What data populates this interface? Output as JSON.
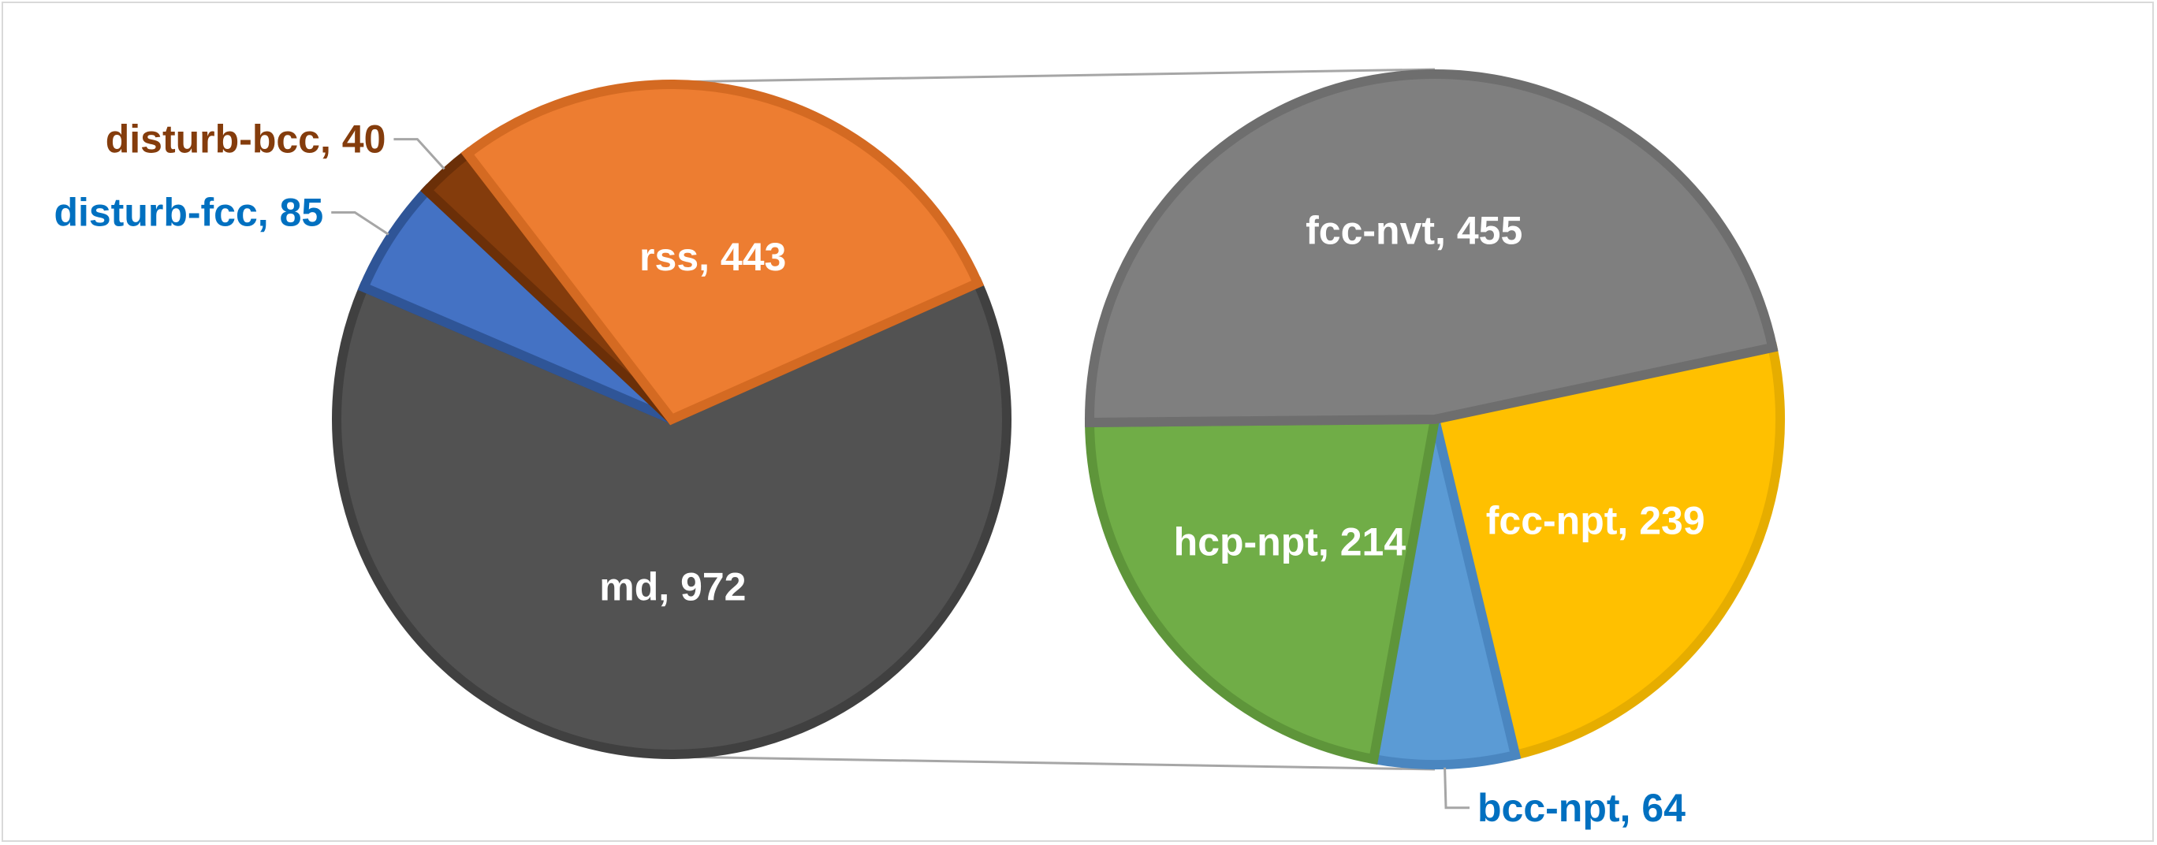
{
  "chart_data": {
    "type": "pie",
    "subtype": "pie-of-pie",
    "title": "",
    "primary": {
      "slices": [
        {
          "label": "md",
          "value": 972,
          "color": "#525252",
          "edge": "#404040",
          "text_color": "#ffffff",
          "label_style": "inside"
        },
        {
          "label": "disturb-fcc",
          "value": 85,
          "color": "#4472c4",
          "edge": "#2f5597",
          "text_color": "#0070c0",
          "label_style": "outside"
        },
        {
          "label": "disturb-bcc",
          "value": 40,
          "color": "#843c0c",
          "edge": "#6b2f08",
          "text_color": "#843c0c",
          "label_style": "outside"
        },
        {
          "label": "rss",
          "value": 443,
          "color": "#ed7d31",
          "edge": "#d46a22",
          "text_color": "#ffffff",
          "label_style": "inside"
        }
      ]
    },
    "secondary": {
      "exploded_from": "md",
      "slices": [
        {
          "label": "fcc-npt",
          "value": 239,
          "color": "#ffc000",
          "edge": "#e6ad00",
          "text_color": "#ffffff",
          "label_style": "inside"
        },
        {
          "label": "bcc-npt",
          "value": 64,
          "color": "#5b9bd5",
          "edge": "#4a86c0",
          "text_color": "#0070c0",
          "label_style": "outside"
        },
        {
          "label": "hcp-npt",
          "value": 214,
          "color": "#70ad47",
          "edge": "#5e953a",
          "text_color": "#ffffff",
          "label_style": "inside"
        },
        {
          "label": "fcc-nvt",
          "value": 455,
          "color": "#7f7f7f",
          "edge": "#6e6e6e",
          "text_color": "#ffffff",
          "label_style": "inside"
        }
      ]
    },
    "legend": "none",
    "label_format": "{label}, {value}",
    "connector_color": "#a6a6a6"
  }
}
